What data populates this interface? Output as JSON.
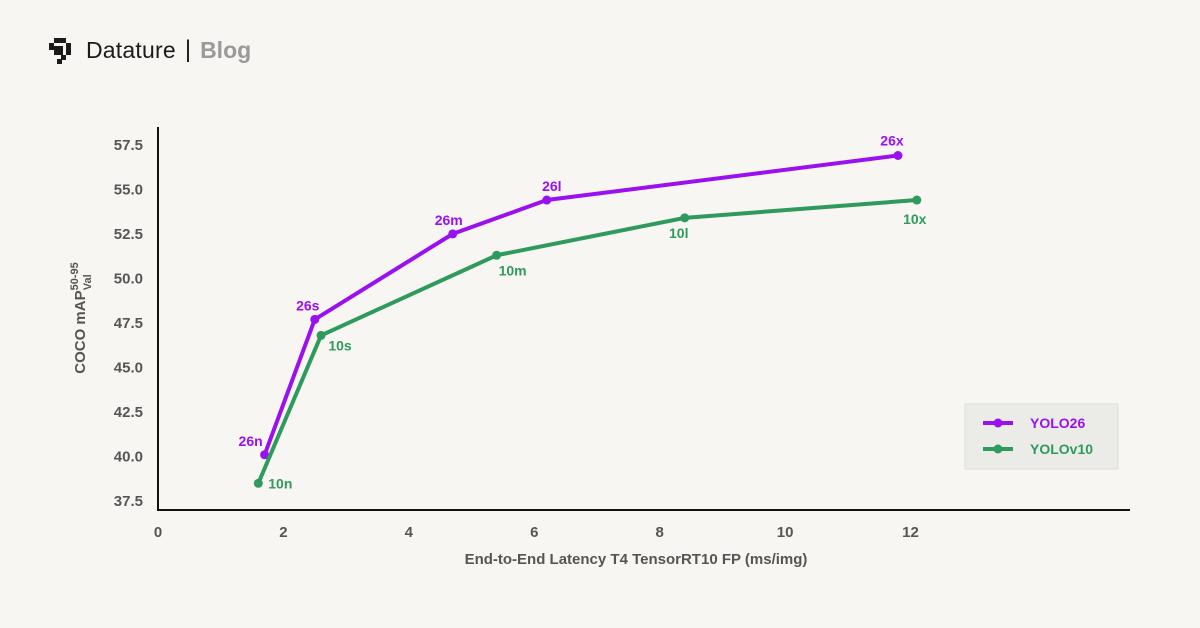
{
  "header": {
    "brand": "Datature",
    "separator": "|",
    "section": "Blog",
    "logo_icon": "datature-logo-icon"
  },
  "chart_data": {
    "type": "line",
    "xlabel": "End-to-End Latency T4 TensorRT10 FP (ms/img)",
    "ylabel_main": "COCO mAP",
    "ylabel_sup": "50-95",
    "ylabel_sub": "Val",
    "xlim": [
      0,
      15.5
    ],
    "ylim": [
      37,
      58.5
    ],
    "x_ticks": [
      0,
      2,
      4,
      6,
      8,
      10,
      12
    ],
    "y_ticks": [
      "37.5",
      "40.0",
      "42.5",
      "45.0",
      "47.5",
      "50.0",
      "52.5",
      "55.0",
      "57.5"
    ],
    "legend_position": "bottom-right",
    "series": [
      {
        "name": "YOLO26",
        "color": "#9b10f0",
        "points": [
          {
            "x": 1.7,
            "y": 40.1,
            "label": "26n"
          },
          {
            "x": 2.5,
            "y": 47.7,
            "label": "26s"
          },
          {
            "x": 4.7,
            "y": 52.5,
            "label": "26m"
          },
          {
            "x": 6.2,
            "y": 54.4,
            "label": "26l"
          },
          {
            "x": 11.8,
            "y": 56.9,
            "label": "26x"
          }
        ]
      },
      {
        "name": "YOLOv10",
        "color": "#2e9a5c",
        "points": [
          {
            "x": 1.6,
            "y": 38.5,
            "label": "10n"
          },
          {
            "x": 2.6,
            "y": 46.8,
            "label": "10s"
          },
          {
            "x": 5.4,
            "y": 51.3,
            "label": "10m"
          },
          {
            "x": 8.4,
            "y": 53.4,
            "label": "10l"
          },
          {
            "x": 12.1,
            "y": 54.4,
            "label": "10x"
          }
        ]
      }
    ]
  }
}
